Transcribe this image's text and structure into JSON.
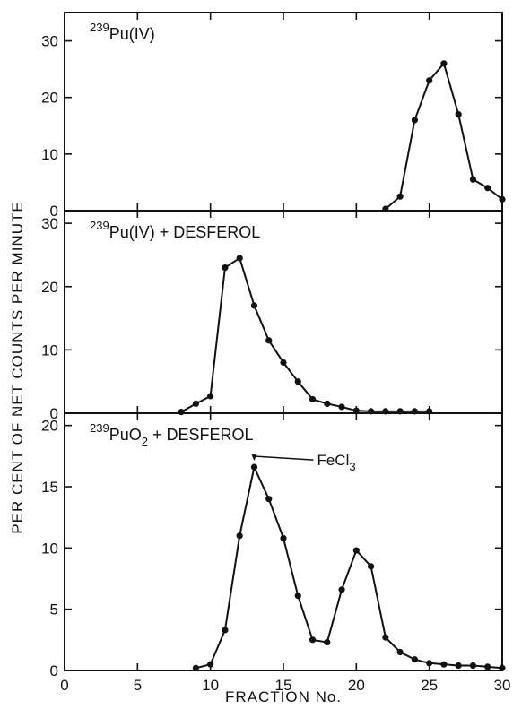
{
  "figure": {
    "ylabel": "PER CENT OF NET COUNTS PER MINUTE",
    "xlabel": "FRACTION No."
  },
  "chart_data": [
    {
      "type": "line",
      "title": "",
      "label": {
        "super": "239",
        "main": "Pu(IV)"
      },
      "xlabel": "FRACTION No.",
      "ylabel": "PER CENT OF NET COUNTS PER MINUTE",
      "xlim": [
        0,
        30
      ],
      "ylim": [
        0,
        35
      ],
      "x_ticks": [
        0,
        5,
        10,
        15,
        20,
        25,
        30
      ],
      "y_ticks": [
        0,
        10,
        20,
        30
      ],
      "grid": false,
      "series": [
        {
          "x": [
            22,
            23,
            24,
            25,
            26,
            27,
            28,
            29,
            30
          ],
          "y": [
            0.3,
            2.5,
            16,
            23,
            26,
            17,
            5.5,
            4,
            2
          ]
        }
      ]
    },
    {
      "type": "line",
      "title": "",
      "label": {
        "super": "239",
        "main": "Pu(IV) + DESFEROL"
      },
      "xlabel": "FRACTION No.",
      "ylabel": "PER CENT OF NET COUNTS PER MINUTE",
      "xlim": [
        0,
        30
      ],
      "ylim": [
        0,
        32
      ],
      "x_ticks": [
        0,
        5,
        10,
        15,
        20,
        25,
        30
      ],
      "y_ticks": [
        0,
        10,
        20,
        30
      ],
      "grid": false,
      "series": [
        {
          "x": [
            8,
            9,
            10,
            11,
            12,
            13,
            14,
            15,
            16,
            17,
            18,
            19,
            20,
            21,
            22,
            23,
            24,
            25
          ],
          "y": [
            0.2,
            1.5,
            2.7,
            23,
            24.5,
            17,
            11.5,
            8,
            5,
            2.2,
            1.5,
            1,
            0.4,
            0.3,
            0.3,
            0.3,
            0.3,
            0.3
          ]
        }
      ]
    },
    {
      "type": "line",
      "title": "",
      "label": {
        "super": "239",
        "main": "PuO",
        "sub": "2",
        "suffix": " + DESFEROL"
      },
      "xlabel": "FRACTION No.",
      "ylabel": "PER CENT OF NET COUNTS PER MINUTE",
      "xlim": [
        0,
        30
      ],
      "ylim": [
        0,
        21
      ],
      "x_ticks": [
        0,
        5,
        10,
        15,
        20,
        25,
        30
      ],
      "y_ticks": [
        0,
        5,
        10,
        15,
        20
      ],
      "x_tick_labels": [
        "0",
        "5",
        "10",
        "15",
        "20",
        "25",
        "30"
      ],
      "grid": false,
      "annotation": {
        "text": "FeCl",
        "sub": "3",
        "x": 13,
        "y": 16.6
      },
      "series": [
        {
          "x": [
            9,
            10,
            11,
            12,
            13,
            14,
            15,
            16,
            17,
            18,
            19,
            20,
            21,
            22,
            23,
            24,
            25,
            26,
            27,
            28,
            29,
            30
          ],
          "y": [
            0.2,
            0.5,
            3.3,
            11,
            16.6,
            14,
            10.8,
            6.1,
            2.5,
            2.3,
            6.6,
            9.8,
            8.5,
            2.7,
            1.5,
            0.9,
            0.6,
            0.5,
            0.4,
            0.4,
            0.3,
            0.2
          ]
        }
      ]
    }
  ]
}
